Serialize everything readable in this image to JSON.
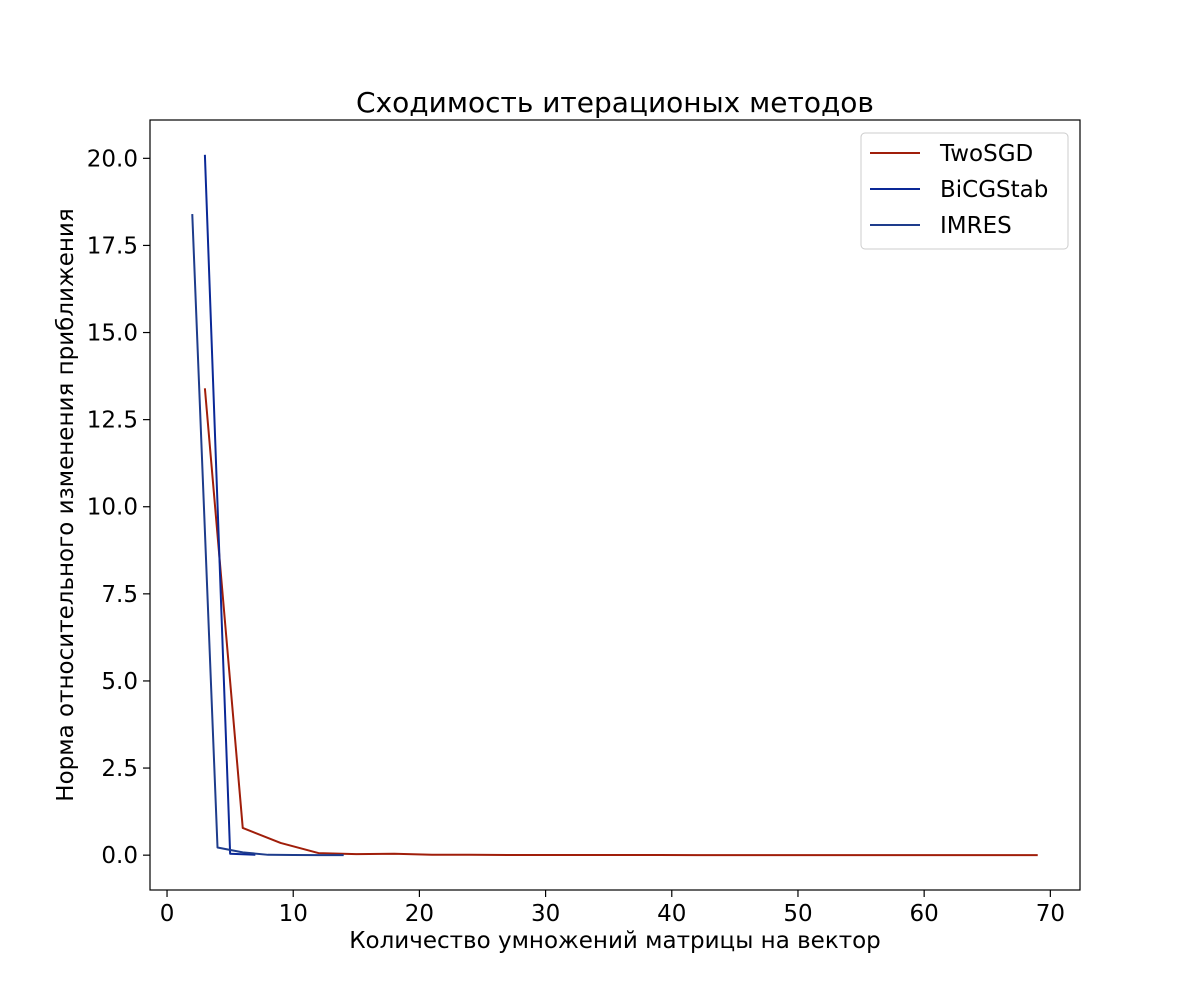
{
  "chart_data": {
    "type": "line",
    "title": "Сходимость итерационых методов",
    "xlabel": "Количество умножений матрицы на вектор",
    "ylabel": "Норма относительного изменения приближения",
    "xlim": [
      -1.35,
      72.35
    ],
    "ylim": [
      -1.0,
      21.1
    ],
    "xticks": [
      0,
      10,
      20,
      30,
      40,
      50,
      60,
      70
    ],
    "xtick_labels": [
      "0",
      "10",
      "20",
      "30",
      "40",
      "50",
      "60",
      "70"
    ],
    "yticks": [
      0.0,
      2.5,
      5.0,
      7.5,
      10.0,
      12.5,
      15.0,
      17.5,
      20.0
    ],
    "ytick_labels": [
      "0.0",
      "2.5",
      "5.0",
      "7.5",
      "10.0",
      "12.5",
      "15.0",
      "17.5",
      "20.0"
    ],
    "grid": false,
    "legend_position": "top-right",
    "series": [
      {
        "name": "TwoSGD",
        "color": "#a01e0a",
        "x": [
          3,
          6,
          9,
          12,
          15,
          18,
          21,
          24,
          27,
          30,
          33,
          36,
          39,
          42,
          45,
          48,
          51,
          54,
          57,
          60,
          63,
          66,
          69
        ],
        "y": [
          13.4,
          0.78,
          0.35,
          0.06,
          0.03,
          0.04,
          0.01,
          0.01,
          0.005,
          0.005,
          0.004,
          0.003,
          0.003,
          0.002,
          0.002,
          0.002,
          0.001,
          0.001,
          0.001,
          0.001,
          0.001,
          0.001,
          0.001
        ]
      },
      {
        "name": "BiCGStab",
        "color": "#0a2896",
        "x": [
          3,
          5,
          7
        ],
        "y": [
          20.1,
          0.04,
          0.01
        ]
      },
      {
        "name": "IMRES",
        "color": "#1e3c8c",
        "x": [
          2,
          4,
          6,
          8,
          10,
          12,
          14
        ],
        "y": [
          18.4,
          0.22,
          0.08,
          0.01,
          0.005,
          0.002,
          0.001
        ]
      }
    ]
  }
}
